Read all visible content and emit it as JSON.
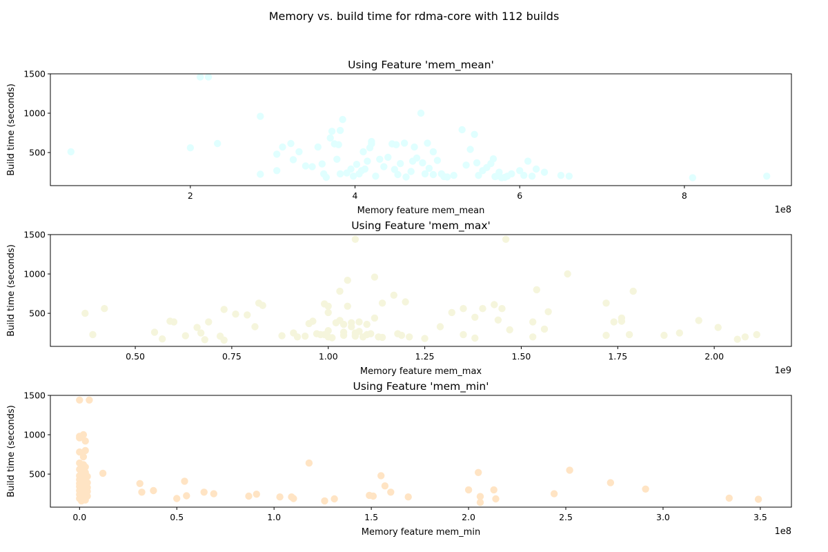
{
  "figure": {
    "title": "Memory vs. build time for rdma-core with 112 builds"
  },
  "chart_data": [
    {
      "type": "scatter",
      "title": "Using Feature 'mem_mean'",
      "xlabel": "Memory feature mem_mean",
      "ylabel": "Build time (seconds)",
      "x_offset_label": "1e8",
      "x_scale": 100000000,
      "xlim": [
        0.3,
        9.3
      ],
      "ylim": [
        80,
        1500
      ],
      "xticks": [
        2,
        4,
        6,
        8
      ],
      "yticks": [
        500,
        1000,
        1500
      ],
      "color": "#e0ffff",
      "points": [
        [
          0.55,
          510
        ],
        [
          2.0,
          560
        ],
        [
          2.12,
          1460
        ],
        [
          2.22,
          1460
        ],
        [
          2.33,
          615
        ],
        [
          2.85,
          960
        ],
        [
          2.85,
          225
        ],
        [
          3.05,
          270
        ],
        [
          3.05,
          480
        ],
        [
          3.12,
          570
        ],
        [
          3.22,
          615
        ],
        [
          3.25,
          410
        ],
        [
          3.32,
          510
        ],
        [
          3.4,
          330
        ],
        [
          3.48,
          320
        ],
        [
          3.55,
          570
        ],
        [
          3.6,
          355
        ],
        [
          3.62,
          230
        ],
        [
          3.65,
          185
        ],
        [
          3.7,
          685
        ],
        [
          3.72,
          770
        ],
        [
          3.75,
          610
        ],
        [
          3.78,
          415
        ],
        [
          3.8,
          600
        ],
        [
          3.82,
          780
        ],
        [
          3.82,
          230
        ],
        [
          3.85,
          920
        ],
        [
          3.9,
          240
        ],
        [
          3.95,
          290
        ],
        [
          3.98,
          200
        ],
        [
          4.02,
          350
        ],
        [
          4.05,
          230
        ],
        [
          4.08,
          270
        ],
        [
          4.1,
          510
        ],
        [
          4.12,
          290
        ],
        [
          4.15,
          390
        ],
        [
          4.18,
          560
        ],
        [
          4.2,
          640
        ],
        [
          4.2,
          610
        ],
        [
          4.25,
          200
        ],
        [
          4.3,
          415
        ],
        [
          4.35,
          320
        ],
        [
          4.4,
          440
        ],
        [
          4.45,
          610
        ],
        [
          4.48,
          285
        ],
        [
          4.5,
          600
        ],
        [
          4.52,
          220
        ],
        [
          4.55,
          360
        ],
        [
          4.6,
          620
        ],
        [
          4.62,
          190
        ],
        [
          4.68,
          260
        ],
        [
          4.7,
          390
        ],
        [
          4.72,
          570
        ],
        [
          4.75,
          430
        ],
        [
          4.8,
          1000
        ],
        [
          4.82,
          370
        ],
        [
          4.85,
          230
        ],
        [
          4.88,
          620
        ],
        [
          4.9,
          300
        ],
        [
          4.95,
          510
        ],
        [
          4.95,
          220
        ],
        [
          5.0,
          400
        ],
        [
          5.05,
          230
        ],
        [
          5.08,
          195
        ],
        [
          5.12,
          190
        ],
        [
          5.2,
          210
        ],
        [
          5.3,
          790
        ],
        [
          5.35,
          340
        ],
        [
          5.4,
          540
        ],
        [
          5.45,
          730
        ],
        [
          5.48,
          370
        ],
        [
          5.5,
          210
        ],
        [
          5.55,
          270
        ],
        [
          5.6,
          310
        ],
        [
          5.65,
          360
        ],
        [
          5.68,
          420
        ],
        [
          5.7,
          195
        ],
        [
          5.72,
          200
        ],
        [
          5.75,
          250
        ],
        [
          5.78,
          180
        ],
        [
          5.82,
          185
        ],
        [
          5.85,
          200
        ],
        [
          5.9,
          230
        ],
        [
          6.0,
          270
        ],
        [
          6.05,
          210
        ],
        [
          6.1,
          390
        ],
        [
          6.15,
          200
        ],
        [
          6.2,
          290
        ],
        [
          6.3,
          250
        ],
        [
          6.5,
          210
        ],
        [
          6.6,
          200
        ],
        [
          8.1,
          180
        ],
        [
          9.0,
          200
        ]
      ]
    },
    {
      "type": "scatter",
      "title": "Using Feature 'mem_max'",
      "xlabel": "Memory feature mem_max",
      "ylabel": "Build time (seconds)",
      "x_offset_label": "1e9",
      "x_scale": 1000000000,
      "xlim": [
        0.28,
        2.2
      ],
      "ylim": [
        80,
        1500
      ],
      "xticks": [
        0.5,
        0.75,
        1.0,
        1.25,
        1.5,
        1.75,
        2.0
      ],
      "yticks": [
        500,
        1000,
        1500
      ],
      "color": "#f5f5dc",
      "points": [
        [
          0.37,
          500
        ],
        [
          0.39,
          230
        ],
        [
          0.42,
          560
        ],
        [
          0.55,
          260
        ],
        [
          0.57,
          175
        ],
        [
          0.59,
          400
        ],
        [
          0.6,
          390
        ],
        [
          0.63,
          215
        ],
        [
          0.66,
          320
        ],
        [
          0.67,
          250
        ],
        [
          0.68,
          165
        ],
        [
          0.69,
          390
        ],
        [
          0.72,
          210
        ],
        [
          0.73,
          160
        ],
        [
          0.73,
          550
        ],
        [
          0.76,
          490
        ],
        [
          0.79,
          480
        ],
        [
          0.81,
          330
        ],
        [
          0.82,
          630
        ],
        [
          0.83,
          600
        ],
        [
          0.88,
          215
        ],
        [
          0.91,
          250
        ],
        [
          0.92,
          200
        ],
        [
          0.94,
          210
        ],
        [
          0.95,
          370
        ],
        [
          0.96,
          400
        ],
        [
          0.97,
          240
        ],
        [
          0.98,
          230
        ],
        [
          0.99,
          230
        ],
        [
          0.99,
          620
        ],
        [
          1.0,
          590
        ],
        [
          1.0,
          510
        ],
        [
          1.0,
          280
        ],
        [
          1.0,
          200
        ],
        [
          1.01,
          190
        ],
        [
          1.02,
          380
        ],
        [
          1.03,
          410
        ],
        [
          1.03,
          780
        ],
        [
          1.04,
          360
        ],
        [
          1.04,
          220
        ],
        [
          1.04,
          260
        ],
        [
          1.05,
          590
        ],
        [
          1.05,
          920
        ],
        [
          1.06,
          380
        ],
        [
          1.06,
          330
        ],
        [
          1.07,
          250
        ],
        [
          1.07,
          210
        ],
        [
          1.07,
          1440
        ],
        [
          1.07,
          220
        ],
        [
          1.08,
          390
        ],
        [
          1.08,
          270
        ],
        [
          1.09,
          200
        ],
        [
          1.1,
          230
        ],
        [
          1.1,
          360
        ],
        [
          1.11,
          240
        ],
        [
          1.12,
          440
        ],
        [
          1.12,
          960
        ],
        [
          1.13,
          200
        ],
        [
          1.14,
          195
        ],
        [
          1.14,
          630
        ],
        [
          1.17,
          730
        ],
        [
          1.18,
          240
        ],
        [
          1.19,
          220
        ],
        [
          1.2,
          645
        ],
        [
          1.21,
          200
        ],
        [
          1.25,
          180
        ],
        [
          1.29,
          330
        ],
        [
          1.32,
          510
        ],
        [
          1.35,
          560
        ],
        [
          1.35,
          230
        ],
        [
          1.38,
          450
        ],
        [
          1.38,
          185
        ],
        [
          1.4,
          560
        ],
        [
          1.43,
          610
        ],
        [
          1.44,
          415
        ],
        [
          1.45,
          560
        ],
        [
          1.46,
          1440
        ],
        [
          1.47,
          290
        ],
        [
          1.53,
          390
        ],
        [
          1.53,
          200
        ],
        [
          1.54,
          800
        ],
        [
          1.56,
          300
        ],
        [
          1.57,
          520
        ],
        [
          1.62,
          1000
        ],
        [
          1.72,
          630
        ],
        [
          1.72,
          220
        ],
        [
          1.74,
          390
        ],
        [
          1.76,
          440
        ],
        [
          1.76,
          400
        ],
        [
          1.78,
          230
        ],
        [
          1.79,
          780
        ],
        [
          1.87,
          220
        ],
        [
          1.91,
          250
        ],
        [
          1.96,
          410
        ],
        [
          2.01,
          320
        ],
        [
          2.06,
          170
        ],
        [
          2.08,
          200
        ],
        [
          2.11,
          230
        ]
      ]
    },
    {
      "type": "scatter",
      "title": "Using Feature 'mem_min'",
      "xlabel": "Memory feature mem_min",
      "ylabel": "Build time (seconds)",
      "x_offset_label": "1e8",
      "x_scale": 100000000,
      "xlim": [
        -0.15,
        3.66
      ],
      "ylim": [
        80,
        1500
      ],
      "xticks": [
        0.0,
        0.5,
        1.0,
        1.5,
        2.0,
        2.5,
        3.0,
        3.5
      ],
      "yticks": [
        500,
        1000,
        1500
      ],
      "color": "#ffe4c4",
      "points": [
        [
          0.0,
          1440
        ],
        [
          0.05,
          1440
        ],
        [
          0.0,
          980
        ],
        [
          0.02,
          1000
        ],
        [
          0.0,
          960
        ],
        [
          0.03,
          920
        ],
        [
          0.0,
          780
        ],
        [
          0.03,
          800
        ],
        [
          0.02,
          720
        ],
        [
          0.0,
          640
        ],
        [
          0.02,
          620
        ],
        [
          0.01,
          600
        ],
        [
          0.03,
          590
        ],
        [
          0.0,
          560
        ],
        [
          0.02,
          540
        ],
        [
          0.03,
          520
        ],
        [
          0.01,
          500
        ],
        [
          0.0,
          480
        ],
        [
          0.04,
          470
        ],
        [
          0.02,
          450
        ],
        [
          0.0,
          430
        ],
        [
          0.03,
          420
        ],
        [
          0.01,
          400
        ],
        [
          0.04,
          390
        ],
        [
          0.0,
          380
        ],
        [
          0.02,
          370
        ],
        [
          0.03,
          350
        ],
        [
          0.0,
          340
        ],
        [
          0.04,
          330
        ],
        [
          0.01,
          320
        ],
        [
          0.02,
          310
        ],
        [
          0.03,
          300
        ],
        [
          0.0,
          290
        ],
        [
          0.04,
          280
        ],
        [
          0.01,
          270
        ],
        [
          0.02,
          260
        ],
        [
          0.03,
          250
        ],
        [
          0.0,
          240
        ],
        [
          0.02,
          230
        ],
        [
          0.04,
          220
        ],
        [
          0.01,
          210
        ],
        [
          0.03,
          200
        ],
        [
          0.0,
          190
        ],
        [
          0.02,
          180
        ],
        [
          0.03,
          170
        ],
        [
          0.01,
          160
        ],
        [
          0.12,
          510
        ],
        [
          0.31,
          380
        ],
        [
          0.32,
          270
        ],
        [
          0.38,
          290
        ],
        [
          0.5,
          190
        ],
        [
          0.54,
          410
        ],
        [
          0.55,
          225
        ],
        [
          0.64,
          270
        ],
        [
          0.69,
          250
        ],
        [
          0.87,
          220
        ],
        [
          0.91,
          245
        ],
        [
          1.03,
          210
        ],
        [
          1.09,
          210
        ],
        [
          1.1,
          190
        ],
        [
          1.18,
          640
        ],
        [
          1.26,
          160
        ],
        [
          1.31,
          185
        ],
        [
          1.49,
          230
        ],
        [
          1.51,
          220
        ],
        [
          1.55,
          480
        ],
        [
          1.57,
          350
        ],
        [
          1.6,
          270
        ],
        [
          1.69,
          210
        ],
        [
          2.0,
          300
        ],
        [
          2.05,
          520
        ],
        [
          2.06,
          215
        ],
        [
          2.06,
          140
        ],
        [
          2.13,
          300
        ],
        [
          2.14,
          185
        ],
        [
          2.44,
          250
        ],
        [
          2.52,
          550
        ],
        [
          2.73,
          390
        ],
        [
          2.91,
          310
        ],
        [
          3.34,
          195
        ],
        [
          3.49,
          180
        ]
      ]
    }
  ]
}
